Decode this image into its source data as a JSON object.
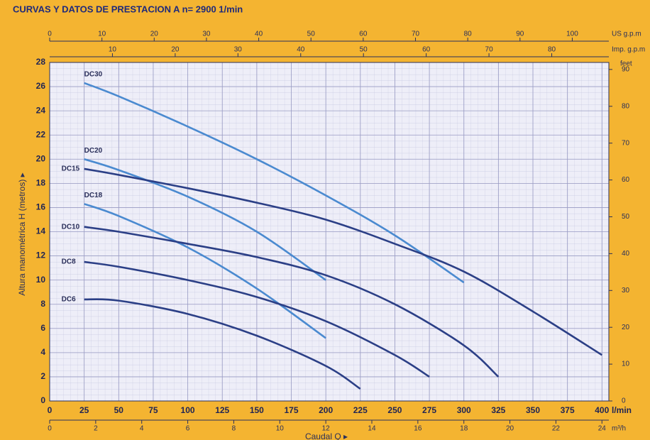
{
  "chart_data": {
    "type": "line",
    "title": "CURVAS Y DATOS DE PRESTACION A n= 2900  1/min",
    "ylabel": "Altura manométrica H (metros) ▸",
    "xlabel": "Caudal Q ▸",
    "xunit": "l/min",
    "xlim": [
      0,
      405
    ],
    "xticks": [
      0,
      25,
      50,
      75,
      100,
      125,
      150,
      175,
      200,
      225,
      250,
      275,
      300,
      325,
      350,
      375,
      400
    ],
    "ylim": [
      0,
      28
    ],
    "yticks": [
      0,
      2,
      4,
      6,
      8,
      10,
      12,
      14,
      16,
      18,
      20,
      22,
      24,
      26,
      28
    ],
    "y2unit": "feet",
    "y2lim": [
      0,
      91.9
    ],
    "y2ticks": [
      0,
      10,
      20,
      30,
      40,
      50,
      60,
      70,
      80,
      90
    ],
    "top_axes": [
      {
        "unit": "US g.p.m",
        "lim": [
          0,
          107
        ],
        "ticks": [
          0,
          10,
          20,
          30,
          40,
          50,
          60,
          70,
          80,
          90,
          100
        ]
      },
      {
        "unit": "Imp. g.p.m",
        "lim": [
          0,
          89.1
        ],
        "ticks": [
          10,
          20,
          30,
          40,
          50,
          60,
          70,
          80
        ]
      }
    ],
    "bottom_axes": [
      {
        "unit": "m³/h",
        "lim": [
          0,
          24.3
        ],
        "ticks": [
          0,
          2,
          4,
          6,
          8,
          10,
          12,
          14,
          16,
          18,
          20,
          22,
          24
        ]
      }
    ],
    "grid": true,
    "series": [
      {
        "name": "DC30",
        "color": "#4a8ad0",
        "x": [
          25,
          50,
          100,
          150,
          200,
          250,
          300
        ],
        "values": [
          26.3,
          25.2,
          22.7,
          20,
          17,
          13.7,
          9.8
        ]
      },
      {
        "name": "DC20",
        "color": "#4a8ad0",
        "x": [
          25,
          50,
          100,
          150,
          200
        ],
        "values": [
          20,
          19.1,
          16.9,
          14,
          10
        ]
      },
      {
        "name": "DC15",
        "color": "#2b3f86",
        "x": [
          25,
          50,
          100,
          150,
          200,
          250,
          300,
          350,
          400
        ],
        "values": [
          19.2,
          18.7,
          17.6,
          16.4,
          15,
          13,
          10.7,
          7.4,
          3.8
        ]
      },
      {
        "name": "DC18",
        "color": "#4a8ad0",
        "x": [
          25,
          50,
          100,
          150,
          200
        ],
        "values": [
          16.3,
          15.3,
          12.7,
          9.3,
          5.2
        ]
      },
      {
        "name": "DC10",
        "color": "#2b3f86",
        "x": [
          25,
          50,
          100,
          150,
          200,
          250,
          300,
          325
        ],
        "values": [
          14.4,
          14,
          13,
          11.9,
          10.4,
          8,
          4.6,
          2
        ]
      },
      {
        "name": "DC8",
        "color": "#2b3f86",
        "x": [
          25,
          50,
          100,
          150,
          200,
          250,
          275
        ],
        "values": [
          11.5,
          11.1,
          10,
          8.6,
          6.6,
          3.8,
          2
        ]
      },
      {
        "name": "DC6",
        "color": "#2b3f86",
        "x": [
          25,
          50,
          100,
          150,
          200,
          225
        ],
        "values": [
          8.4,
          8.3,
          7.2,
          5.4,
          2.9,
          1
        ]
      }
    ]
  }
}
